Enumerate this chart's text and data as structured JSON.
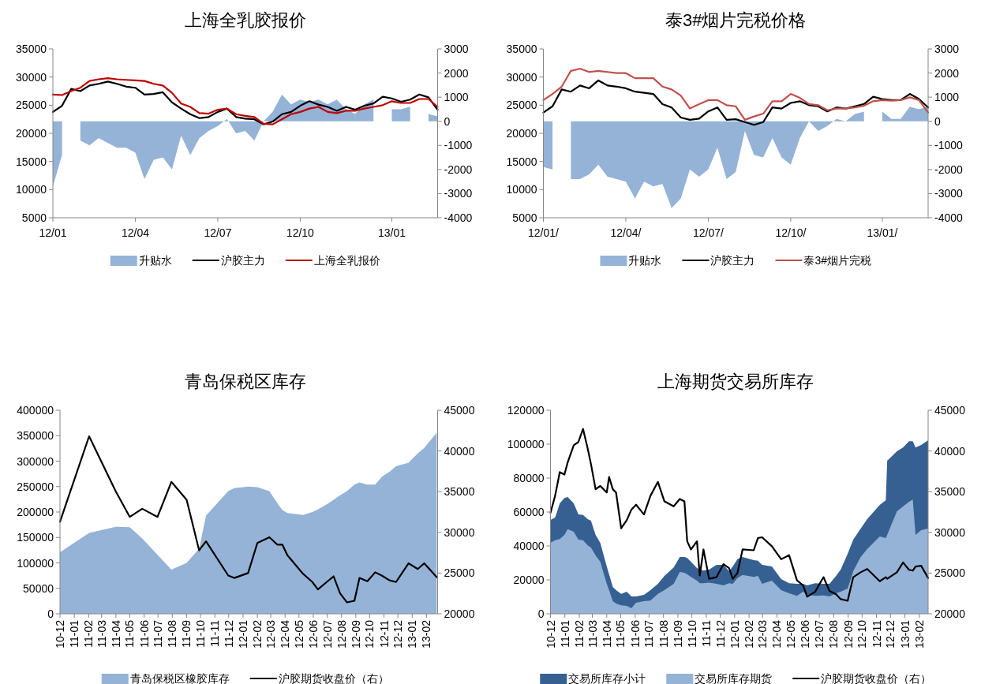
{
  "chart_data": [
    {
      "type": "line",
      "title": "上海全乳胶报价",
      "legend": "bottom",
      "categories": [
        "12/01",
        null,
        null,
        null,
        null,
        null,
        null,
        null,
        null,
        "12/04",
        null,
        null,
        null,
        null,
        null,
        null,
        null,
        null,
        "12/07",
        null,
        null,
        null,
        null,
        null,
        null,
        null,
        null,
        "12/10",
        null,
        null,
        null,
        null,
        null,
        null,
        null,
        null,
        null,
        "13/01",
        null,
        null,
        null,
        null,
        null
      ],
      "ylim": [
        5000,
        35000
      ],
      "yticks": [
        5000,
        10000,
        15000,
        20000,
        25000,
        30000,
        35000
      ],
      "y2lim": [
        -4000,
        3000
      ],
      "y2ticks": [
        -4000,
        -3000,
        -2000,
        -1000,
        0,
        1000,
        2000,
        3000
      ],
      "series": [
        {
          "name": "升贴水",
          "type": "area",
          "axis": "y2",
          "color": "#95b3d7",
          "values": [
            -2700,
            -1400,
            null,
            -800,
            -1000,
            -700,
            -900,
            -1100,
            -1100,
            -1300,
            -2400,
            -1600,
            -1500,
            -2000,
            -600,
            -1400,
            -700,
            -400,
            -200,
            100,
            -500,
            -400,
            -800,
            0,
            400,
            1100,
            700,
            900,
            800,
            900,
            700,
            900,
            500,
            300,
            700,
            900,
            null,
            500,
            500,
            600,
            null,
            300,
            200
          ]
        },
        {
          "name": "沪胶主力",
          "type": "line",
          "color": "#000000",
          "values": [
            23800,
            24900,
            27900,
            27500,
            28500,
            28800,
            29200,
            28800,
            28300,
            28100,
            26900,
            27000,
            27300,
            25500,
            24400,
            23400,
            22700,
            22900,
            23800,
            24400,
            22900,
            22600,
            22500,
            21600,
            22100,
            23400,
            23800,
            24900,
            25700,
            25100,
            24700,
            24000,
            24700,
            24200,
            24900,
            25300,
            26500,
            26200,
            25600,
            26000,
            26900,
            26400,
            24200
          ]
        },
        {
          "name": "上海全乳报价",
          "type": "line",
          "color": "#c00000",
          "values": [
            26900,
            26800,
            27500,
            28100,
            29300,
            29600,
            29800,
            29600,
            29500,
            29400,
            29300,
            28800,
            28500,
            27200,
            25300,
            24700,
            23600,
            23500,
            24200,
            24400,
            23400,
            23100,
            22900,
            21700,
            21600,
            22500,
            23400,
            23800,
            24400,
            24700,
            23800,
            23600,
            24000,
            24000,
            24400,
            24700,
            25000,
            25700,
            25400,
            25400,
            26100,
            26100,
            24700
          ]
        }
      ]
    },
    {
      "type": "line",
      "title": "泰3#烟片完税价格",
      "legend": "bottom",
      "categories": [
        "12/01/",
        null,
        null,
        null,
        null,
        null,
        null,
        null,
        null,
        "12/04/",
        null,
        null,
        null,
        null,
        null,
        null,
        null,
        null,
        "12/07/",
        null,
        null,
        null,
        null,
        null,
        null,
        null,
        null,
        "12/10/",
        null,
        null,
        null,
        null,
        null,
        null,
        null,
        null,
        null,
        "13/01/",
        null,
        null,
        null,
        null,
        null
      ],
      "ylim": [
        5000,
        35000
      ],
      "yticks": [
        5000,
        10000,
        15000,
        20000,
        25000,
        30000,
        35000
      ],
      "y2lim": [
        -4000,
        3000
      ],
      "y2ticks": [
        -4000,
        -3000,
        -2000,
        -1000,
        0,
        1000,
        2000,
        3000
      ],
      "series": [
        {
          "name": "升贴水",
          "type": "area",
          "axis": "y2",
          "color": "#95b3d7",
          "values": [
            -1900,
            -2000,
            null,
            -2400,
            -2400,
            -2200,
            -1800,
            -2300,
            -2400,
            -2500,
            -3200,
            -2500,
            -2700,
            -2600,
            -3600,
            -3200,
            -2000,
            -2300,
            -2000,
            -1100,
            -2400,
            -2100,
            -400,
            -1400,
            -1500,
            -700,
            -1500,
            -1800,
            -700,
            0,
            -400,
            -200,
            100,
            0,
            300,
            400,
            null,
            400,
            100,
            100,
            600,
            500,
            600
          ]
        },
        {
          "name": "沪胶主力",
          "type": "line",
          "color": "#000000",
          "values": [
            23700,
            24800,
            27800,
            27400,
            28500,
            28000,
            29400,
            28500,
            28300,
            28000,
            27400,
            27200,
            27000,
            25200,
            24600,
            22800,
            22400,
            22600,
            23900,
            24600,
            22400,
            22500,
            22000,
            21500,
            22000,
            24600,
            24400,
            25400,
            25700,
            25000,
            24800,
            23900,
            24600,
            24400,
            24800,
            25200,
            26500,
            26100,
            25900,
            25900,
            27000,
            26100,
            24600
          ]
        },
        {
          "name": "泰3#烟片完税",
          "type": "line",
          "color": "#c0504d",
          "values": [
            25900,
            27000,
            28300,
            31100,
            31500,
            30900,
            31100,
            30900,
            30700,
            30700,
            29800,
            29800,
            29800,
            28300,
            27800,
            26700,
            24400,
            25200,
            25900,
            25900,
            25000,
            24800,
            22400,
            23000,
            23500,
            25700,
            25700,
            27000,
            26300,
            25200,
            25000,
            24100,
            24400,
            24400,
            24600,
            24900,
            25700,
            25900,
            25800,
            25900,
            26400,
            25900,
            23700
          ]
        }
      ]
    },
    {
      "type": "line",
      "title": "青岛保税区库存",
      "legend": "bottom",
      "x": [
        "2010-12-01",
        "2011-02-02",
        "2011-04-01",
        "2011-05-01",
        "2011-05-28",
        "2011-06-30",
        "2011-07-30",
        "2011-09-01",
        "2011-09-28",
        "2011-10-13",
        "2011-11-30",
        "2011-12-13",
        "2012-01-12",
        "2012-02-01",
        "2012-02-27",
        "2012-03-15",
        "2012-03-26",
        "2012-04-06",
        "2012-05-10",
        "2012-05-30",
        "2012-06-11",
        "2012-06-30",
        "2012-07-15",
        "2012-07-29",
        "2012-08-13",
        "2012-08-29",
        "2012-09-09",
        "2012-09-26",
        "2012-10-13",
        "2012-10-27",
        "2012-11-13",
        "2012-11-27",
        "2012-12-24",
        "2013-01-13",
        "2013-01-27",
        "2013-02-23"
      ],
      "xlim": [
        "2010-12-01",
        "2013-02-25"
      ],
      "xticks": [
        {
          "value": "2010-12-01",
          "label": "10-12"
        },
        {
          "value": "2011-01-01",
          "label": "11-01"
        },
        {
          "value": "2011-02-01",
          "label": "11-02"
        },
        {
          "value": "2011-03-01",
          "label": "11-03"
        },
        {
          "value": "2011-04-01",
          "label": "11-04"
        },
        {
          "value": "2011-05-01",
          "label": "11-05"
        },
        {
          "value": "2011-06-01",
          "label": "11-06"
        },
        {
          "value": "2011-07-01",
          "label": "11-07"
        },
        {
          "value": "2011-08-01",
          "label": "11-08"
        },
        {
          "value": "2011-09-01",
          "label": "11-09"
        },
        {
          "value": "2011-10-01",
          "label": "11-10"
        },
        {
          "value": "2011-11-01",
          "label": "11-11"
        },
        {
          "value": "2011-12-01",
          "label": "11-12"
        },
        {
          "value": "2012-01-01",
          "label": "12-01"
        },
        {
          "value": "2012-02-01",
          "label": "12-02"
        },
        {
          "value": "2012-03-01",
          "label": "12-03"
        },
        {
          "value": "2012-04-01",
          "label": "12-04"
        },
        {
          "value": "2012-05-01",
          "label": "12-05"
        },
        {
          "value": "2012-06-01",
          "label": "12-06"
        },
        {
          "value": "2012-07-01",
          "label": "12-07"
        },
        {
          "value": "2012-08-01",
          "label": "12-08"
        },
        {
          "value": "2012-09-01",
          "label": "12-09"
        },
        {
          "value": "2012-10-01",
          "label": "12-10"
        },
        {
          "value": "2012-11-01",
          "label": "12-11"
        },
        {
          "value": "2012-12-01",
          "label": "12-12"
        },
        {
          "value": "2013-01-01",
          "label": "13-01"
        },
        {
          "value": "2013-02-01",
          "label": "13-02"
        }
      ],
      "ylim": [
        0,
        400000
      ],
      "yticks": [
        0,
        50000,
        100000,
        150000,
        200000,
        250000,
        300000,
        350000,
        400000
      ],
      "y2lim": [
        20000,
        45000
      ],
      "y2ticks": [
        20000,
        25000,
        30000,
        35000,
        40000,
        45000
      ],
      "series": [
        {
          "name": "青岛保税区橡胶库存",
          "type": "area",
          "color": "#95b3d7",
          "values": [
            121000,
            159000,
            171000,
            170000,
            148000,
            116000,
            87000,
            100000,
            128000,
            193000,
            241000,
            247000,
            250000,
            249000,
            241000,
            218000,
            204000,
            198000,
            194000,
            200000,
            205000,
            215000,
            224000,
            233000,
            241000,
            254000,
            258000,
            254000,
            254000,
            269000,
            279000,
            290000,
            297000,
            315000,
            326000,
            356000
          ]
        },
        {
          "name": "沪胶期货收盘价（右）",
          "type": "line",
          "axis": "y2",
          "color": "#000000",
          "values": [
            31300,
            41800,
            35000,
            31900,
            32900,
            31900,
            36200,
            34000,
            27800,
            28900,
            24700,
            24400,
            25000,
            28700,
            29400,
            28500,
            28500,
            27200,
            24900,
            23900,
            23000,
            23900,
            24600,
            22500,
            21400,
            21600,
            24400,
            24000,
            25100,
            24700,
            24100,
            23900,
            26200,
            25500,
            26200,
            24500
          ]
        }
      ]
    },
    {
      "type": "line",
      "title": "上海期货交易所库存",
      "legend": "bottom",
      "x": [
        "2010-12-01",
        "2010-12-11",
        "2010-12-21",
        "2010-12-31",
        "2011-01-07",
        "2011-01-20",
        "2011-01-30",
        "2011-02-09",
        "2011-02-19",
        "2011-02-26",
        "2011-03-08",
        "2011-03-18",
        "2011-04-01",
        "2011-04-06",
        "2011-04-14",
        "2011-04-21",
        "2011-05-02",
        "2011-05-14",
        "2011-05-24",
        "2011-06-03",
        "2011-06-20",
        "2011-07-04",
        "2011-07-20",
        "2011-08-03",
        "2011-08-23",
        "2011-09-05",
        "2011-09-15",
        "2011-09-21",
        "2011-09-29",
        "2011-10-12",
        "2011-10-18",
        "2011-10-26",
        "2011-11-07",
        "2011-11-23",
        "2011-12-08",
        "2011-12-20",
        "2011-12-28",
        "2012-01-07",
        "2012-01-18",
        "2012-02-11",
        "2012-02-20",
        "2012-02-29",
        "2012-03-21",
        "2012-04-10",
        "2012-04-27",
        "2012-05-14",
        "2012-05-27",
        "2012-06-05",
        "2012-06-22",
        "2012-07-10",
        "2012-07-23",
        "2012-08-06",
        "2012-08-16",
        "2012-08-31",
        "2012-09-12",
        "2012-09-28",
        "2012-10-12",
        "2012-11-08",
        "2012-11-21",
        "2012-11-24",
        "2012-12-15",
        "2012-12-28",
        "2013-01-10",
        "2013-01-18",
        "2013-01-24",
        "2013-02-05",
        "2013-02-20"
      ],
      "xlim": [
        "2010-12-01",
        "2013-02-20"
      ],
      "xticks": [
        {
          "value": "2010-12-01",
          "label": "10-12"
        },
        {
          "value": "2011-01-01",
          "label": "11-01"
        },
        {
          "value": "2011-02-01",
          "label": "11-02"
        },
        {
          "value": "2011-03-01",
          "label": "11-03"
        },
        {
          "value": "2011-04-01",
          "label": "11-04"
        },
        {
          "value": "2011-05-01",
          "label": "11-05"
        },
        {
          "value": "2011-06-01",
          "label": "11-06"
        },
        {
          "value": "2011-07-01",
          "label": "11-07"
        },
        {
          "value": "2011-08-01",
          "label": "11-08"
        },
        {
          "value": "2011-09-01",
          "label": "11-09"
        },
        {
          "value": "2011-10-01",
          "label": "11-10"
        },
        {
          "value": "2011-11-01",
          "label": "11-11"
        },
        {
          "value": "2011-12-01",
          "label": "11-12"
        },
        {
          "value": "2012-01-01",
          "label": "12-01"
        },
        {
          "value": "2012-02-01",
          "label": "12-02"
        },
        {
          "value": "2012-03-01",
          "label": "12-03"
        },
        {
          "value": "2012-04-01",
          "label": "12-04"
        },
        {
          "value": "2012-05-01",
          "label": "12-05"
        },
        {
          "value": "2012-06-01",
          "label": "12-06"
        },
        {
          "value": "2012-07-01",
          "label": "12-07"
        },
        {
          "value": "2012-08-01",
          "label": "12-08"
        },
        {
          "value": "2012-09-01",
          "label": "12-09"
        },
        {
          "value": "2012-10-01",
          "label": "12-10"
        },
        {
          "value": "2012-11-01",
          "label": "12-11"
        },
        {
          "value": "2012-12-01",
          "label": "12-12"
        },
        {
          "value": "2013-01-01",
          "label": "13-01"
        },
        {
          "value": "2013-02-01",
          "label": "13-02"
        }
      ],
      "ylim": [
        0,
        120000
      ],
      "yticks": [
        0,
        20000,
        40000,
        60000,
        80000,
        100000,
        120000
      ],
      "y2lim": [
        20000,
        45000
      ],
      "y2ticks": [
        20000,
        25000,
        30000,
        35000,
        40000,
        45000
      ],
      "series": [
        {
          "name": "交易所库存小计",
          "type": "area",
          "color": "#376092",
          "values": [
            55300,
            56700,
            65100,
            68300,
            68800,
            65100,
            58600,
            58200,
            55800,
            54900,
            46500,
            41900,
            27900,
            23300,
            15800,
            14000,
            11700,
            13000,
            10200,
            10200,
            11200,
            14000,
            17700,
            22300,
            27300,
            33500,
            33500,
            32900,
            30700,
            27000,
            26000,
            25500,
            26000,
            28800,
            28800,
            25100,
            27900,
            32200,
            33500,
            31600,
            31300,
            28800,
            27900,
            20500,
            18000,
            17700,
            17700,
            16700,
            18000,
            17700,
            17700,
            22300,
            26000,
            35300,
            43700,
            50200,
            55800,
            64200,
            67000,
            90200,
            95800,
            98000,
            101800,
            101800,
            98000,
            99500,
            102300
          ]
        },
        {
          "name": "交易所库存期货",
          "type": "area",
          "color": "#95b3d7",
          "values": [
            41900,
            43400,
            44100,
            46500,
            49900,
            48400,
            43700,
            43400,
            40400,
            39100,
            34400,
            30700,
            17700,
            14000,
            7400,
            6100,
            5000,
            4700,
            3200,
            6500,
            7400,
            7800,
            11700,
            14000,
            17700,
            24700,
            24200,
            23300,
            21800,
            19500,
            18000,
            18000,
            18400,
            17700,
            16700,
            18000,
            17700,
            21000,
            22900,
            21800,
            22300,
            17700,
            19500,
            14000,
            12100,
            10600,
            13000,
            11300,
            10600,
            10800,
            10200,
            12100,
            13000,
            14900,
            25100,
            33500,
            38100,
            45600,
            44700,
            46500,
            60500,
            63300,
            66000,
            67300,
            46500,
            49300,
            50200
          ]
        },
        {
          "name": "沪胶期货收盘价（右）",
          "type": "line",
          "axis": "y2",
          "color": "#000000",
          "values": [
            32400,
            34500,
            37400,
            37100,
            38600,
            40700,
            41100,
            42700,
            40300,
            38400,
            35300,
            35700,
            34900,
            36800,
            35300,
            34900,
            30500,
            31500,
            32800,
            33400,
            32200,
            34500,
            36200,
            33800,
            33200,
            34100,
            33800,
            28900,
            27900,
            28900,
            24700,
            27900,
            24300,
            24500,
            26100,
            25600,
            24300,
            25000,
            27900,
            27800,
            29300,
            29400,
            28300,
            26700,
            27200,
            24100,
            23500,
            22100,
            22700,
            24500,
            22800,
            22400,
            21800,
            21600,
            24500,
            25100,
            25500,
            24000,
            24500,
            24300,
            25100,
            26300,
            25400,
            25300,
            25800,
            25900,
            24400
          ]
        }
      ]
    }
  ]
}
